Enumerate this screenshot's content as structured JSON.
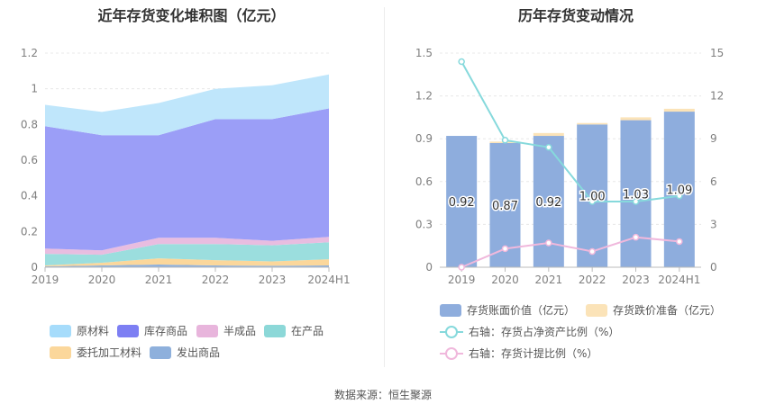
{
  "source": "数据来源：恒生聚源",
  "chart_data": [
    {
      "type": "area",
      "stacked": true,
      "title": "近年存货变化堆积图（亿元）",
      "categories": [
        "2019",
        "2020",
        "2021",
        "2022",
        "2023",
        "2024H1"
      ],
      "ylim": [
        0,
        1.2
      ],
      "yticks": [
        "0",
        "0.2",
        "0.4",
        "0.6",
        "0.8",
        "1",
        "1.2"
      ],
      "grid": true,
      "legend_position": "bottom",
      "series": [
        {
          "name": "发出商品",
          "color": "#8eb0dc",
          "values": [
            0.005,
            0.01,
            0.015,
            0.01,
            0.008,
            0.01
          ]
        },
        {
          "name": "委托加工材料",
          "color": "#fbd79b",
          "values": [
            0.005,
            0.015,
            0.035,
            0.03,
            0.025,
            0.035
          ]
        },
        {
          "name": "在产品",
          "color": "#9bdede",
          "values": [
            0.065,
            0.045,
            0.08,
            0.09,
            0.09,
            0.095
          ]
        },
        {
          "name": "半成品",
          "color": "#e8bde0",
          "values": [
            0.03,
            0.025,
            0.035,
            0.035,
            0.025,
            0.03
          ]
        },
        {
          "name": "库存商品",
          "color": "#9b9ef7",
          "values": [
            0.685,
            0.645,
            0.575,
            0.665,
            0.682,
            0.72
          ]
        },
        {
          "name": "原材料",
          "color": "#bfe6fb",
          "values": [
            0.12,
            0.13,
            0.18,
            0.17,
            0.19,
            0.19
          ]
        }
      ],
      "legend": [
        {
          "name": "原材料",
          "color": "#a6dcfb"
        },
        {
          "name": "库存商品",
          "color": "#7d7ff3"
        },
        {
          "name": "半成品",
          "color": "#e8b5dc"
        },
        {
          "name": "在产品",
          "color": "#8cd8d8"
        },
        {
          "name": "委托加工材料",
          "color": "#fbd79b"
        },
        {
          "name": "发出商品",
          "color": "#8eb0dc"
        }
      ]
    },
    {
      "type": "bar+line",
      "title": "历年存货变动情况",
      "categories": [
        "2019",
        "2020",
        "2021",
        "2022",
        "2023",
        "2024H1"
      ],
      "left_ylim": [
        0,
        1.5
      ],
      "left_yticks": [
        "0",
        "0.3",
        "0.6",
        "0.9",
        "1.2",
        "1.5"
      ],
      "right_ylim": [
        0,
        15
      ],
      "right_yticks": [
        "0",
        "3",
        "6",
        "9",
        "12",
        "15"
      ],
      "grid": true,
      "legend_position": "bottom",
      "bar_series": [
        {
          "name": "存货账面价值（亿元）",
          "color": "#8eaddd",
          "values": [
            0.92,
            0.87,
            0.92,
            1.0,
            1.03,
            1.09
          ],
          "labels": [
            "0.92",
            "0.87",
            "0.92",
            "1.00",
            "1.03",
            "1.09"
          ]
        },
        {
          "name": "存货跌价准备（亿元）",
          "color": "#fbe3b8",
          "values": [
            0,
            0.01,
            0.02,
            0.01,
            0.02,
            0.02
          ]
        }
      ],
      "line_series": [
        {
          "name": "右轴：存货占净资产比例（%）",
          "color": "#86d9dc",
          "values": [
            14.4,
            8.9,
            8.4,
            4.6,
            4.6,
            5.0
          ]
        },
        {
          "name": "右轴：存货计提比例（%）",
          "color": "#f0b8dc",
          "values": [
            0.0,
            1.3,
            1.7,
            1.1,
            2.1,
            1.8
          ]
        }
      ]
    }
  ]
}
